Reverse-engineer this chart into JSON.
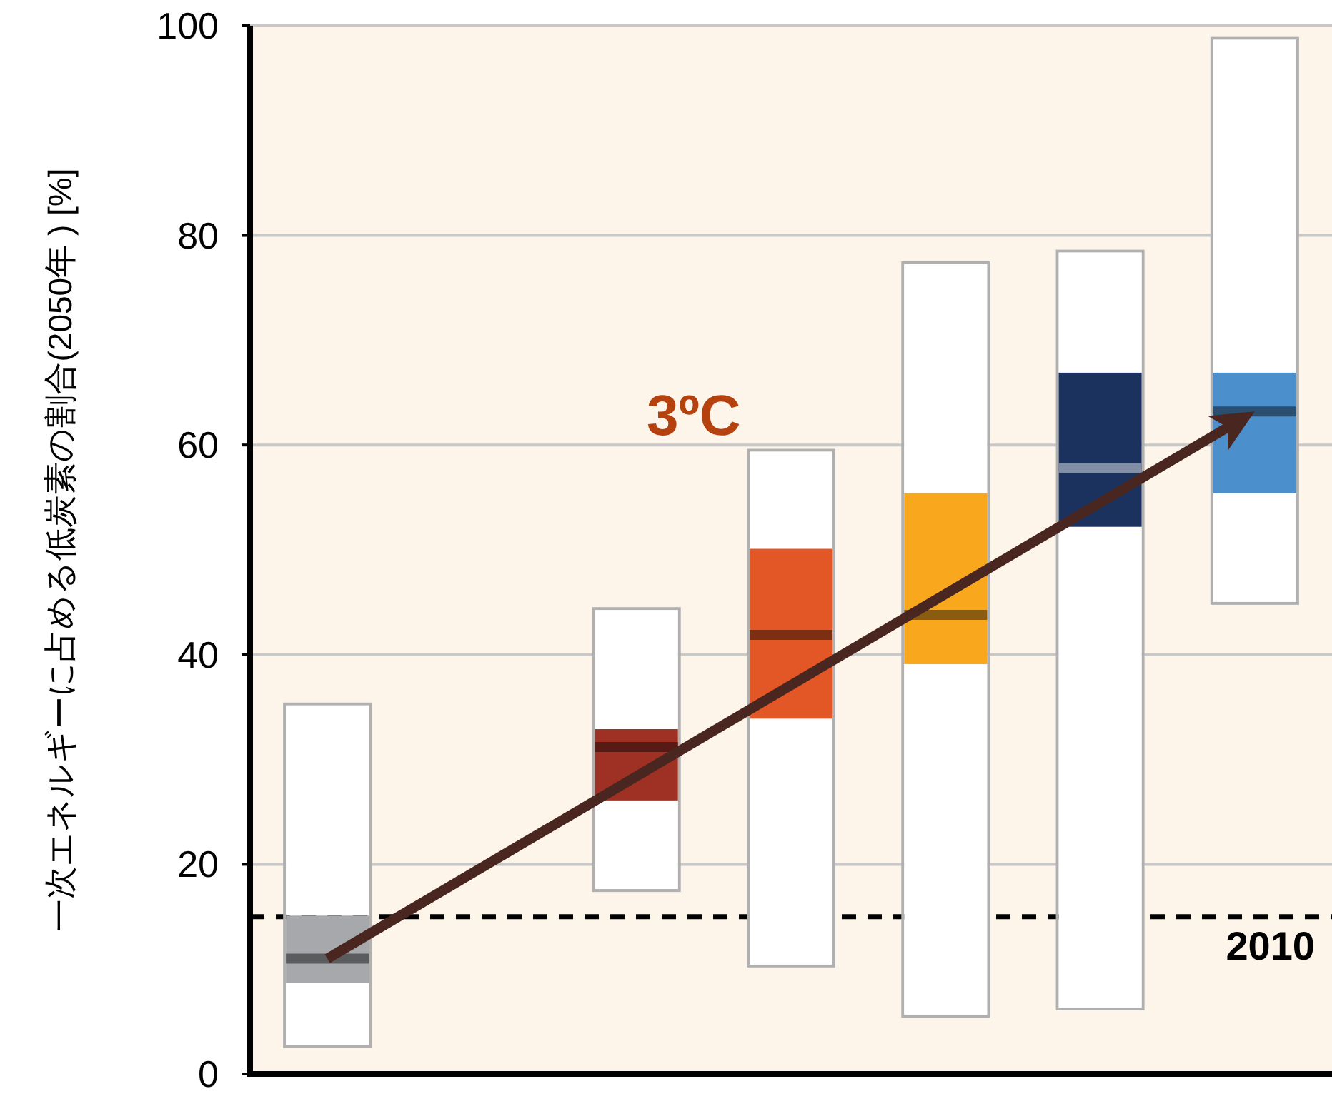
{
  "chart_data": {
    "type": "box",
    "ylabel": "一次エネルギーに占める低炭素の割合(2050年 ) [%]",
    "categories": [
      null,
      null,
      null,
      null,
      null,
      null,
      null
    ],
    "boxes": [
      {
        "low": 2.6,
        "q1": 8.7,
        "median": 11.0,
        "q3": 15.1,
        "high": 35.3
      },
      null,
      {
        "low": 17.5,
        "q1": 26.1,
        "median": 31.2,
        "q3": 32.9,
        "high": 44.4
      },
      {
        "low": 10.3,
        "q1": 33.9,
        "median": 41.9,
        "q3": 50.1,
        "high": 59.5
      },
      {
        "low": 5.5,
        "q1": 39.1,
        "median": 43.8,
        "q3": 55.4,
        "high": 77.4
      },
      {
        "low": 6.2,
        "q1": 52.2,
        "median": 57.8,
        "q3": 66.9,
        "high": 78.5
      },
      {
        "low": 44.9,
        "q1": 55.4,
        "median": 63.2,
        "q3": 66.9,
        "high": 98.8
      }
    ],
    "colors": [
      "#a6a8ab",
      null,
      "#9e3024",
      "#e35625",
      "#f9a81e",
      "#1b325e",
      "#4c8fcd"
    ],
    "ylim": [
      0,
      100
    ],
    "yticks": [
      0,
      20,
      40,
      60,
      80,
      100
    ],
    "grid": "y",
    "ref_lines": [
      {
        "axis": "y",
        "value": 15,
        "color": "#000000",
        "line_style": "dashed"
      }
    ],
    "annotations": [
      "3ºC",
      {
        "text": "2010",
        "y": 15
      }
    ]
  }
}
